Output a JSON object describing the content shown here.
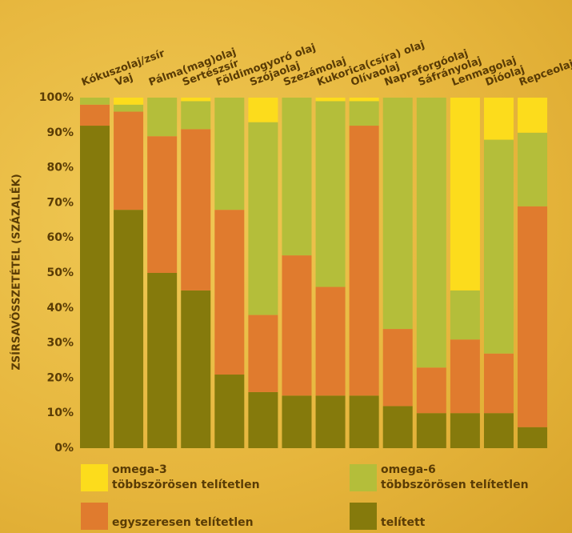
{
  "chart_data": {
    "type": "stacked_bar_100",
    "y_label": "ZSÍRSAVÖSSZETÉTEL (SZÁZALÉK)",
    "categories": [
      "Kókuszolaj/zsír",
      "Vaj",
      "Pálma(mag)olaj",
      "Sertészsír",
      "Földimogyoró olaj",
      "Szójaolaj",
      "Szezámolaj",
      "Kukorica(csíra) olaj",
      "Olívaolaj",
      "Napraforgóolaj",
      "Sáfrányolaj",
      "Lenmagolaj",
      "Dióolaj",
      "Repceolaj"
    ],
    "series": [
      {
        "name": "omega-3\ntöbbszörösen telítetlen",
        "color": "#fcdc1c",
        "values": [
          0,
          2,
          0,
          1,
          0,
          7,
          0,
          1,
          1,
          0,
          0,
          55,
          12,
          10
        ]
      },
      {
        "name": "omega-6\ntöbbszörösen telítetlen",
        "color": "#b4be3a",
        "values": [
          2,
          2,
          11,
          8,
          32,
          55,
          45,
          53,
          7,
          66,
          77,
          14,
          61,
          21
        ]
      },
      {
        "name": "egyszeresen telítetlen",
        "color": "#e07b2e",
        "values": [
          6,
          28,
          39,
          46,
          47,
          22,
          40,
          31,
          77,
          22,
          13,
          21,
          17,
          63
        ]
      },
      {
        "name": "telített",
        "color": "#857a0c",
        "values": [
          92,
          68,
          50,
          45,
          21,
          16,
          15,
          15,
          15,
          12,
          10,
          10,
          10,
          6
        ]
      }
    ],
    "ylim": [
      0,
      100
    ],
    "yticks": [
      {
        "value": 0,
        "label": "0%"
      },
      {
        "value": 10,
        "label": "10%"
      },
      {
        "value": 20,
        "label": "20%"
      },
      {
        "value": 30,
        "label": "30%"
      },
      {
        "value": 40,
        "label": "40%"
      },
      {
        "value": 50,
        "label": "50%"
      },
      {
        "value": 60,
        "label": "60%"
      },
      {
        "value": 70,
        "label": "70%"
      },
      {
        "value": 80,
        "label": "80%"
      },
      {
        "value": 90,
        "label": "90%"
      },
      {
        "value": 100,
        "label": "100%"
      }
    ]
  }
}
